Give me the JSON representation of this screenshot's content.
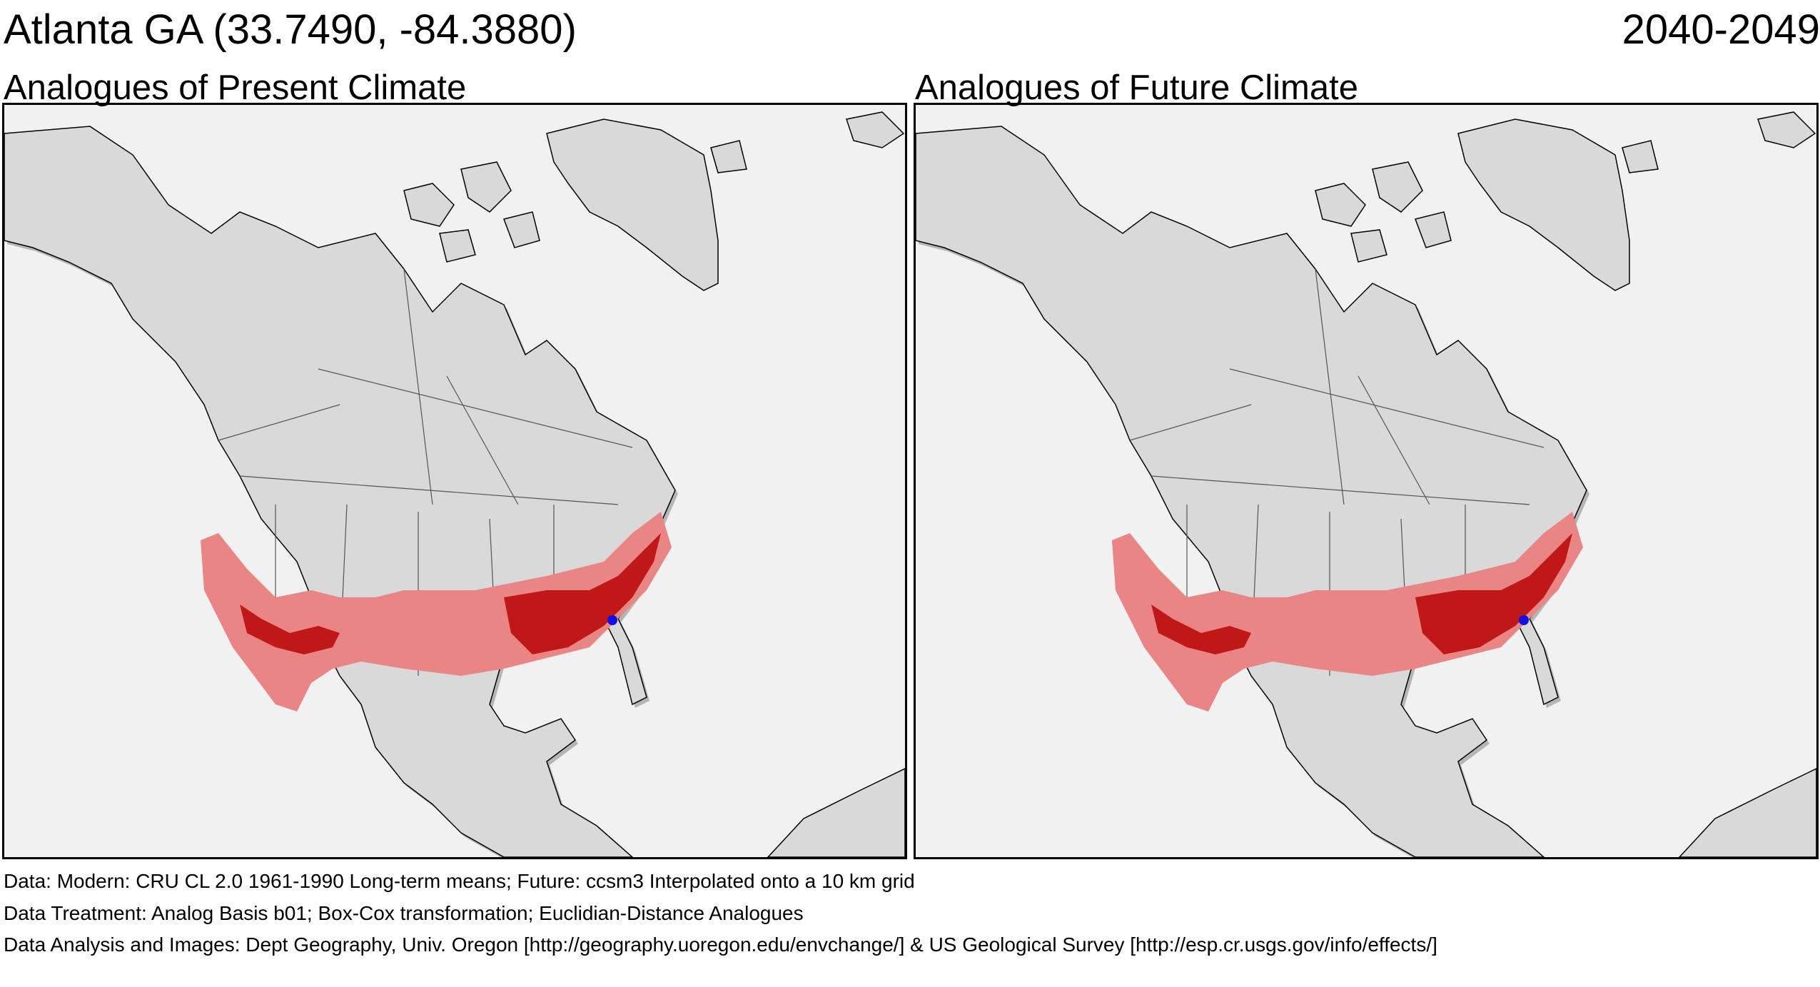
{
  "header": {
    "location_title": "Atlanta GA  (33.7490, -84.3880)",
    "period": "2040-2049"
  },
  "panels": [
    {
      "title": "Analogues of Present Climate",
      "map_name": "present-climate-map"
    },
    {
      "title": "Analogues of Future Climate",
      "map_name": "future-climate-map"
    }
  ],
  "footer": {
    "data_line": "Data:  Modern: CRU CL 2.0 1961-1990 Long-term means; Future: ccsm3 Interpolated onto a 10 km grid",
    "treatment_line": "Data Treatment:  Analog Basis b01; Box-Cox transformation; Euclidian-Distance Analogues",
    "analysis_line": "Data Analysis and Images:  Dept Geography, Univ. Oregon [http://geography.uoregon.edu/envchange/] & US Geological Survey [http://esp.cr.usgs.gov/info/effects/]"
  },
  "colors": {
    "ocean": "#f1f1f1",
    "land": "#d9d9d9",
    "land_shadow": "#b5b5b5",
    "analogue_light": "#e98585",
    "analogue_dark": "#c01818",
    "site_marker": "#1010e0"
  }
}
